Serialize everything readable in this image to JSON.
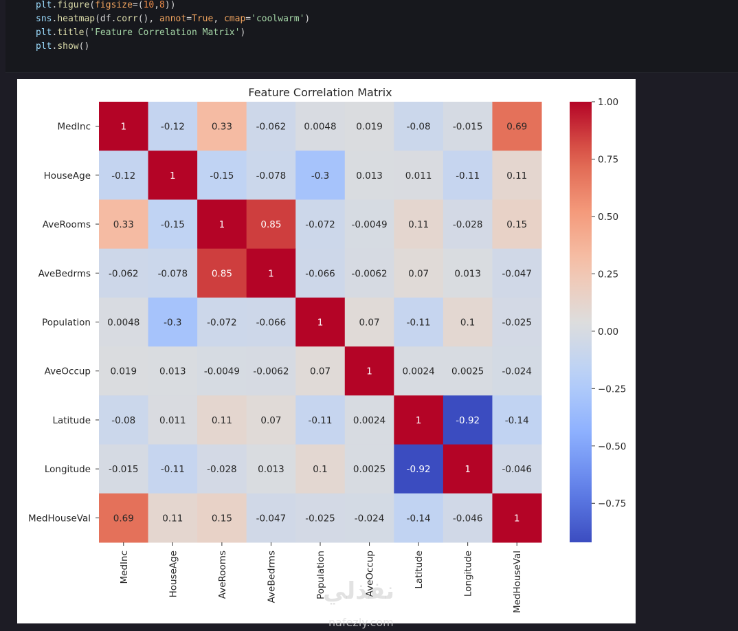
{
  "code_cell": {
    "lines": [
      [
        {
          "t": "plt",
          "c": "t-obj"
        },
        {
          "t": ".",
          "c": "t-punc"
        },
        {
          "t": "figure",
          "c": "t-fn"
        },
        {
          "t": "(",
          "c": "t-punc"
        },
        {
          "t": "figsize",
          "c": "t-arg"
        },
        {
          "t": "=(",
          "c": "t-punc"
        },
        {
          "t": "10",
          "c": "t-num"
        },
        {
          "t": ",",
          "c": "t-punc"
        },
        {
          "t": "8",
          "c": "t-num"
        },
        {
          "t": "))",
          "c": "t-punc"
        }
      ],
      [
        {
          "t": "sns",
          "c": "t-obj"
        },
        {
          "t": ".",
          "c": "t-punc"
        },
        {
          "t": "heatmap",
          "c": "t-fn"
        },
        {
          "t": "(df.",
          "c": "t-punc"
        },
        {
          "t": "corr",
          "c": "t-fn"
        },
        {
          "t": "(), ",
          "c": "t-punc"
        },
        {
          "t": "annot",
          "c": "t-arg"
        },
        {
          "t": "=",
          "c": "t-punc"
        },
        {
          "t": "True",
          "c": "t-bool"
        },
        {
          "t": ", ",
          "c": "t-punc"
        },
        {
          "t": "cmap",
          "c": "t-arg"
        },
        {
          "t": "=",
          "c": "t-punc"
        },
        {
          "t": "'coolwarm'",
          "c": "t-str"
        },
        {
          "t": ")",
          "c": "t-punc"
        }
      ],
      [
        {
          "t": "plt",
          "c": "t-obj"
        },
        {
          "t": ".",
          "c": "t-punc"
        },
        {
          "t": "title",
          "c": "t-fn"
        },
        {
          "t": "(",
          "c": "t-punc"
        },
        {
          "t": "'Feature Correlation Matrix'",
          "c": "t-str"
        },
        {
          "t": ")",
          "c": "t-punc"
        }
      ],
      [
        {
          "t": "plt",
          "c": "t-obj"
        },
        {
          "t": ".",
          "c": "t-punc"
        },
        {
          "t": "show",
          "c": "t-fn"
        },
        {
          "t": "()",
          "c": "t-punc"
        }
      ]
    ]
  },
  "chart_data": {
    "type": "heatmap",
    "title": "Feature Correlation Matrix",
    "xlabel": "",
    "ylabel": "",
    "cmap": "coolwarm",
    "x_labels": [
      "MedInc",
      "HouseAge",
      "AveRooms",
      "AveBedrms",
      "Population",
      "AveOccup",
      "Latitude",
      "Longitude",
      "MedHouseVal"
    ],
    "y_labels": [
      "MedInc",
      "HouseAge",
      "AveRooms",
      "AveBedrms",
      "Population",
      "AveOccup",
      "Latitude",
      "Longitude",
      "MedHouseVal"
    ],
    "values": [
      [
        1,
        -0.12,
        0.33,
        -0.062,
        0.0048,
        0.019,
        -0.08,
        -0.015,
        0.69
      ],
      [
        -0.12,
        1,
        -0.15,
        -0.078,
        -0.3,
        0.013,
        0.011,
        -0.11,
        0.11
      ],
      [
        0.33,
        -0.15,
        1,
        0.85,
        -0.072,
        -0.0049,
        0.11,
        -0.028,
        0.15
      ],
      [
        -0.062,
        -0.078,
        0.85,
        1,
        -0.066,
        -0.0062,
        0.07,
        0.013,
        -0.047
      ],
      [
        0.0048,
        -0.3,
        -0.072,
        -0.066,
        1,
        0.07,
        -0.11,
        0.1,
        -0.025
      ],
      [
        0.019,
        0.013,
        -0.0049,
        -0.0062,
        0.07,
        1,
        0.0024,
        0.0025,
        -0.024
      ],
      [
        -0.08,
        0.011,
        0.11,
        0.07,
        -0.11,
        0.0024,
        1,
        -0.92,
        -0.14
      ],
      [
        -0.015,
        -0.11,
        -0.028,
        0.013,
        0.1,
        0.0025,
        -0.92,
        1,
        -0.046
      ],
      [
        0.69,
        0.11,
        0.15,
        -0.047,
        -0.025,
        -0.024,
        -0.14,
        -0.046,
        1
      ]
    ],
    "annotations": [
      [
        "1",
        "-0.12",
        "0.33",
        "-0.062",
        "0.0048",
        "0.019",
        "-0.08",
        "-0.015",
        "0.69"
      ],
      [
        "-0.12",
        "1",
        "-0.15",
        "-0.078",
        "-0.3",
        "0.013",
        "0.011",
        "-0.11",
        "0.11"
      ],
      [
        "0.33",
        "-0.15",
        "1",
        "0.85",
        "-0.072",
        "-0.0049",
        "0.11",
        "-0.028",
        "0.15"
      ],
      [
        "-0.062",
        "-0.078",
        "0.85",
        "1",
        "-0.066",
        "-0.0062",
        "0.07",
        "0.013",
        "-0.047"
      ],
      [
        "0.0048",
        "-0.3",
        "-0.072",
        "-0.066",
        "1",
        "0.07",
        "-0.11",
        "0.1",
        "-0.025"
      ],
      [
        "0.019",
        "0.013",
        "-0.0049",
        "-0.0062",
        "0.07",
        "1",
        "0.0024",
        "0.0025",
        "-0.024"
      ],
      [
        "-0.08",
        "0.011",
        "0.11",
        "0.07",
        "-0.11",
        "0.0024",
        "1",
        "-0.92",
        "-0.14"
      ],
      [
        "-0.015",
        "-0.11",
        "-0.028",
        "0.013",
        "0.1",
        "0.0025",
        "-0.92",
        "1",
        "-0.046"
      ],
      [
        "0.69",
        "0.11",
        "0.15",
        "-0.047",
        "-0.025",
        "-0.024",
        "-0.14",
        "-0.046",
        "1"
      ]
    ],
    "colorbar": {
      "range": [
        -0.92,
        1.0
      ],
      "ticks": [
        1.0,
        0.75,
        0.5,
        0.25,
        0.0,
        -0.25,
        -0.5,
        -0.75
      ],
      "tick_labels": [
        "1.00",
        "0.75",
        "0.50",
        "0.25",
        "0.00",
        "−0.25",
        "−0.50",
        "−0.75"
      ]
    }
  },
  "watermark": {
    "arabic": "نفذلي",
    "site": "nafezly.com"
  }
}
